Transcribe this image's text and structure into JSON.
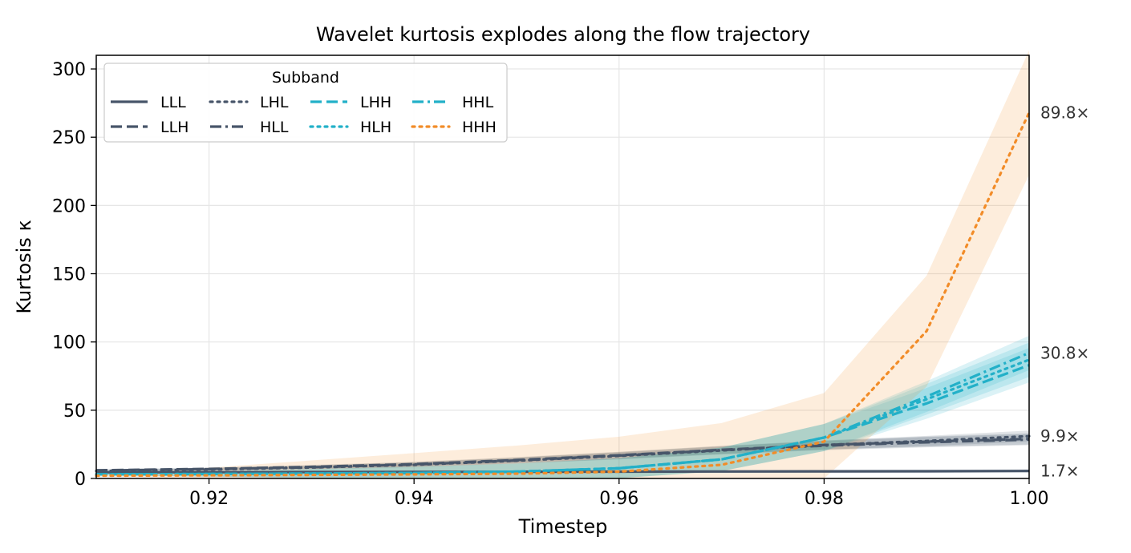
{
  "chart_data": {
    "type": "line",
    "title": "Wavelet kurtosis explodes along the flow trajectory",
    "xlabel": "Timestep",
    "ylabel": "Kurtosis κ",
    "xlim": [
      0.909,
      1.0
    ],
    "ylim": [
      0,
      310
    ],
    "x_ticks": [
      0.92,
      0.94,
      0.96,
      0.98,
      1.0
    ],
    "x_tick_labels": [
      "0.92",
      "0.94",
      "0.96",
      "0.98",
      "1.00"
    ],
    "y_ticks": [
      0,
      50,
      100,
      150,
      200,
      250,
      300
    ],
    "y_tick_labels": [
      "0",
      "50",
      "100",
      "150",
      "200",
      "250",
      "300"
    ],
    "grid": true,
    "legend": {
      "title": "Subband",
      "placement": "top-left",
      "columns": 4
    },
    "x": [
      0.909,
      0.92,
      0.93,
      0.94,
      0.95,
      0.96,
      0.97,
      0.98,
      0.99,
      1.0
    ],
    "series": [
      {
        "name": "LLL",
        "color": "#475569",
        "dash": "solid",
        "values": [
          4.5,
          4.6,
          4.7,
          4.8,
          4.9,
          5.0,
          5.1,
          5.2,
          5.3,
          5.5
        ],
        "band": 0.5,
        "end_label": "1.7×"
      },
      {
        "name": "LLH",
        "color": "#475569",
        "dash": "dashed",
        "values": [
          6.0,
          7.0,
          8.5,
          10.5,
          13.5,
          17.0,
          21.0,
          24.5,
          27.0,
          29.0
        ],
        "band": 3.5,
        "end_label": ""
      },
      {
        "name": "LHL",
        "color": "#475569",
        "dash": "dotted",
        "values": [
          5.5,
          6.5,
          8.0,
          10.0,
          13.0,
          16.5,
          20.5,
          24.5,
          27.5,
          31.0
        ],
        "band": 3.5,
        "end_label": "9.9×"
      },
      {
        "name": "HLL",
        "color": "#475569",
        "dash": "dashdot",
        "values": [
          5.8,
          6.8,
          8.2,
          10.2,
          13.2,
          16.8,
          20.8,
          24.0,
          26.5,
          28.5
        ],
        "band": 3.5,
        "end_label": ""
      },
      {
        "name": "LHH",
        "color": "#22b0c8",
        "dash": "dashed",
        "values": [
          3.0,
          3.3,
          3.6,
          4.0,
          5.0,
          7.5,
          14.0,
          30.0,
          55.0,
          83.0
        ],
        "band": 12.0,
        "end_label": ""
      },
      {
        "name": "HLH",
        "color": "#22b0c8",
        "dash": "dotted",
        "values": [
          3.0,
          3.3,
          3.6,
          4.0,
          5.0,
          7.5,
          14.0,
          30.0,
          58.0,
          87.0
        ],
        "band": 12.0,
        "end_label": ""
      },
      {
        "name": "HHL",
        "color": "#22b0c8",
        "dash": "dashdot",
        "values": [
          3.0,
          3.3,
          3.6,
          4.0,
          5.0,
          7.5,
          14.0,
          30.0,
          60.0,
          92.0
        ],
        "band": 12.0,
        "end_label": "30.8×"
      },
      {
        "name": "HHH",
        "color": "#f28c28",
        "dash": "dotted",
        "values": [
          2.0,
          2.3,
          2.6,
          3.0,
          3.5,
          5.0,
          10.0,
          27.0,
          108.0,
          268.0
        ],
        "band": 45.0,
        "end_label": "89.8×"
      }
    ]
  }
}
